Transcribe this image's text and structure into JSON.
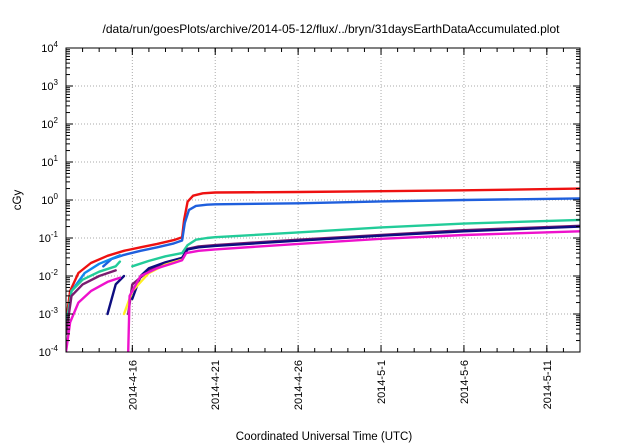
{
  "chart_data": {
    "type": "line",
    "title": "/data/run/goesPlots/archive/2014-05-12/flux/../bryn/31daysEarthDataAccumulated.plot",
    "xlabel": "Coordinated Universal Time (UTC)",
    "ylabel": "cGy",
    "xlim": [
      "2014-04-12",
      "2014-05-13"
    ],
    "ylim": [
      0.0001,
      10000
    ],
    "yscale": "log",
    "grid": true,
    "x_tick_labels": [
      "2014-4-16",
      "2014-4-21",
      "2014-4-26",
      "2014-5-1",
      "2014-5-6",
      "2014-5-11"
    ],
    "y_tick_labels": [
      {
        "base": "10",
        "exp": "-4"
      },
      {
        "base": "10",
        "exp": "-3"
      },
      {
        "base": "10",
        "exp": "-2"
      },
      {
        "base": "10",
        "exp": "-1"
      },
      {
        "base": "10",
        "exp": "0"
      },
      {
        "base": "10",
        "exp": "1"
      },
      {
        "base": "10",
        "exp": "2"
      },
      {
        "base": "10",
        "exp": "3"
      },
      {
        "base": "10",
        "exp": "4"
      }
    ],
    "series": [
      {
        "color": "#ee1111",
        "segments": [
          [
            [
              "2014-04-12",
              0.0006
            ],
            [
              "2014-04-12 06:00",
              0.004
            ],
            [
              "2014-04-12 18:00",
              0.012
            ],
            [
              "2014-04-13 12:00",
              0.022
            ],
            [
              "2014-04-14 12:00",
              0.034
            ],
            [
              "2014-04-15 12:00",
              0.046
            ],
            [
              "2014-04-16 12:00",
              0.057
            ],
            [
              "2014-04-17 12:00",
              0.07
            ],
            [
              "2014-04-18 12:00",
              0.088
            ],
            [
              "2014-04-19",
              0.105
            ],
            [
              "2014-04-19 03:00",
              0.3
            ],
            [
              "2014-04-19 08:00",
              0.9
            ],
            [
              "2014-04-19 16:00",
              1.3
            ],
            [
              "2014-04-20 06:00",
              1.5
            ],
            [
              "2014-04-21",
              1.58
            ],
            [
              "2014-04-26",
              1.62
            ],
            [
              "2014-05-01",
              1.7
            ],
            [
              "2014-05-06",
              1.8
            ],
            [
              "2014-05-13",
              2.0
            ]
          ]
        ]
      },
      {
        "color": "#1f5fdd",
        "segments": [
          [
            [
              "2014-04-14 06:00",
              0.018
            ],
            [
              "2014-04-14 18:00",
              0.028
            ],
            [
              "2014-04-15 12:00",
              0.036
            ],
            [
              "2014-04-16 12:00",
              0.046
            ],
            [
              "2014-04-17 12:00",
              0.057
            ],
            [
              "2014-04-18 12:00",
              0.072
            ],
            [
              "2014-04-19",
              0.086
            ],
            [
              "2014-04-19 04:00",
              0.25
            ],
            [
              "2014-04-19 10:00",
              0.55
            ],
            [
              "2014-04-19 20:00",
              0.7
            ],
            [
              "2014-04-20 12:00",
              0.75
            ],
            [
              "2014-04-21",
              0.77
            ],
            [
              "2014-04-26",
              0.82
            ],
            [
              "2014-05-01",
              0.92
            ],
            [
              "2014-05-06",
              1.0
            ],
            [
              "2014-05-13",
              1.1
            ]
          ]
        ]
      },
      {
        "color": "#1188ee",
        "segments": [
          [
            [
              "2014-04-12",
              0.0003
            ],
            [
              "2014-04-12 08:00",
              0.004
            ],
            [
              "2014-04-13 03:00",
              0.012
            ],
            [
              "2014-04-14",
              0.021
            ],
            [
              "2014-04-15 06:00",
              0.035
            ]
          ]
        ]
      },
      {
        "color": "#22cc99",
        "segments": [
          [
            [
              "2014-04-12",
              0.0005
            ],
            [
              "2014-04-12 08:00",
              0.004
            ],
            [
              "2014-04-13",
              0.008
            ],
            [
              "2014-04-14",
              0.013
            ],
            [
              "2014-04-15",
              0.018
            ],
            [
              "2014-04-15 06:00",
              0.024
            ]
          ],
          [
            [
              "2014-04-16",
              0.018
            ],
            [
              "2014-04-17",
              0.025
            ],
            [
              "2014-04-18",
              0.033
            ],
            [
              "2014-04-19",
              0.04
            ],
            [
              "2014-04-19 08:00",
              0.065
            ],
            [
              "2014-04-19 20:00",
              0.09
            ],
            [
              "2014-04-20 12:00",
              0.1
            ],
            [
              "2014-04-21",
              0.105
            ],
            [
              "2014-04-26",
              0.14
            ],
            [
              "2014-05-01",
              0.19
            ],
            [
              "2014-05-06",
              0.24
            ],
            [
              "2014-05-13",
              0.3
            ]
          ]
        ]
      },
      {
        "color": "#7a1d6f",
        "segments": [
          [
            [
              "2014-04-12",
              0.0003
            ],
            [
              "2014-04-12 08:00",
              0.003
            ],
            [
              "2014-04-13",
              0.006
            ],
            [
              "2014-04-14",
              0.01
            ],
            [
              "2014-04-15",
              0.014
            ]
          ],
          [
            [
              "2014-04-15 18:00",
              0.001
            ],
            [
              "2014-04-16",
              0.006
            ],
            [
              "2014-04-17",
              0.014
            ],
            [
              "2014-04-18",
              0.022
            ],
            [
              "2014-04-19",
              0.03
            ],
            [
              "2014-04-19 08:00",
              0.052
            ],
            [
              "2014-04-20",
              0.06
            ],
            [
              "2014-04-21",
              0.065
            ],
            [
              "2014-04-26",
              0.09
            ],
            [
              "2014-05-01",
              0.12
            ],
            [
              "2014-05-06",
              0.16
            ],
            [
              "2014-05-13",
              0.21
            ]
          ]
        ]
      },
      {
        "color": "#0d0d80",
        "segments": [
          [
            [
              "2014-04-14 12:00",
              0.001
            ],
            [
              "2014-04-15",
              0.006
            ],
            [
              "2014-04-15 12:00",
              0.01
            ]
          ],
          [
            [
              "2014-04-16",
              0.0025
            ],
            [
              "2014-04-16 12:00",
              0.01
            ],
            [
              "2014-04-17",
              0.016
            ],
            [
              "2014-04-18",
              0.023
            ],
            [
              "2014-04-19",
              0.03
            ],
            [
              "2014-04-19 08:00",
              0.05
            ],
            [
              "2014-04-20",
              0.057
            ],
            [
              "2014-04-21",
              0.062
            ],
            [
              "2014-04-26",
              0.085
            ],
            [
              "2014-05-01",
              0.115
            ],
            [
              "2014-05-06",
              0.15
            ],
            [
              "2014-05-13",
              0.2
            ]
          ]
        ]
      },
      {
        "color": "#ffee22",
        "segments": [
          [
            [
              "2014-04-15 12:00",
              0.001
            ],
            [
              "2014-04-16",
              0.004
            ],
            [
              "2014-04-17",
              0.012
            ],
            [
              "2014-04-18",
              0.02
            ],
            [
              "2014-04-19",
              0.027
            ]
          ]
        ]
      },
      {
        "color": "#ee11cc",
        "segments": [
          [
            [
              "2014-04-12",
              0.0001
            ],
            [
              "2014-04-12 06:00",
              0.0006
            ],
            [
              "2014-04-12 18:00",
              0.002
            ],
            [
              "2014-04-13 12:00",
              0.004
            ],
            [
              "2014-04-14 12:00",
              0.007
            ],
            [
              "2014-04-15 06:00",
              0.009
            ]
          ],
          [
            [
              "2014-04-15 18:00",
              0.0001
            ],
            [
              "2014-04-15 20:00",
              0.003
            ],
            [
              "2014-04-16 12:00",
              0.01
            ],
            [
              "2014-04-17 12:00",
              0.016
            ],
            [
              "2014-04-18 12:00",
              0.022
            ],
            [
              "2014-04-19",
              0.026
            ],
            [
              "2014-04-19 06:00",
              0.04
            ],
            [
              "2014-04-20",
              0.046
            ],
            [
              "2014-04-21",
              0.05
            ],
            [
              "2014-04-26",
              0.07
            ],
            [
              "2014-05-01",
              0.095
            ],
            [
              "2014-05-06",
              0.12
            ],
            [
              "2014-05-13",
              0.15
            ]
          ]
        ]
      }
    ]
  }
}
